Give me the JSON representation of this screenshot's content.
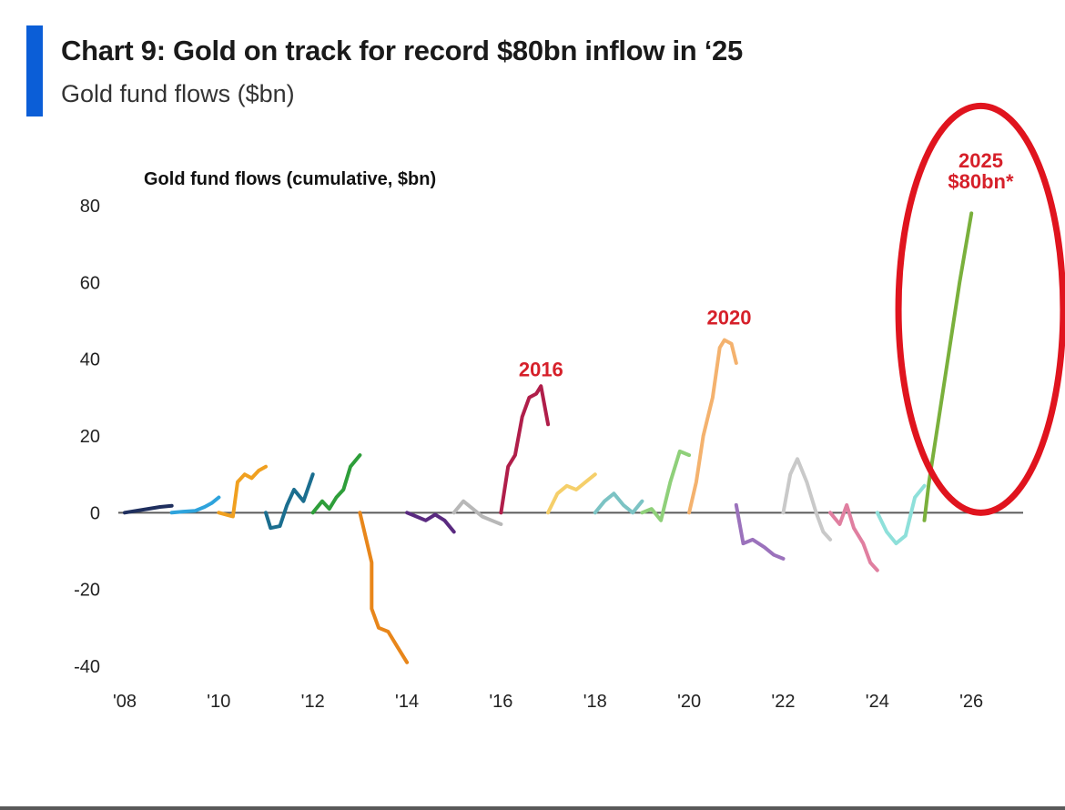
{
  "header": {
    "title": "Chart 9: Gold on track for record $80bn inflow in ‘25",
    "subtitle": "Gold fund flows ($bn)",
    "accent_color": "#0b5ed7"
  },
  "chart_data": {
    "type": "line",
    "title": "Gold fund flows (cumulative, $bn)",
    "xlabel": "",
    "ylabel": "",
    "xlim": [
      2008,
      2027.1
    ],
    "ylim": [
      -40,
      80
    ],
    "x_ticks": [
      {
        "value": 2008,
        "label": "'08"
      },
      {
        "value": 2010,
        "label": "'10"
      },
      {
        "value": 2012,
        "label": "'12"
      },
      {
        "value": 2014,
        "label": "'14"
      },
      {
        "value": 2016,
        "label": "'16"
      },
      {
        "value": 2018,
        "label": "'18"
      },
      {
        "value": 2020,
        "label": "'20"
      },
      {
        "value": 2022,
        "label": "'22"
      },
      {
        "value": 2024,
        "label": "'24"
      },
      {
        "value": 2026,
        "label": "'26"
      }
    ],
    "y_ticks": [
      {
        "value": 80,
        "label": "80"
      },
      {
        "value": 60,
        "label": "60"
      },
      {
        "value": 40,
        "label": "40"
      },
      {
        "value": 20,
        "label": "20"
      },
      {
        "value": 0,
        "label": "0"
      },
      {
        "value": -20,
        "label": "-20"
      },
      {
        "value": -40,
        "label": "-40"
      }
    ],
    "grid": false,
    "legend": "none",
    "series": [
      {
        "year": 2008,
        "color": "#1f2f5e",
        "x": [
          2008.0,
          2008.25,
          2008.5,
          2008.75,
          2009.0
        ],
        "y": [
          0,
          0.5,
          1,
          1.5,
          1.8
        ]
      },
      {
        "year": 2009,
        "color": "#2ea3dc",
        "x": [
          2009.0,
          2009.25,
          2009.5,
          2009.7,
          2009.85,
          2010.0
        ],
        "y": [
          0,
          0.3,
          0.5,
          1.5,
          2.5,
          4
        ]
      },
      {
        "year": 2010,
        "color": "#f0a020",
        "x": [
          2010.0,
          2010.3,
          2010.4,
          2010.55,
          2010.7,
          2010.85,
          2011.0
        ],
        "y": [
          0,
          -1,
          8,
          10,
          9,
          11,
          12
        ]
      },
      {
        "year": 2011,
        "color": "#1b6e8f",
        "x": [
          2011.0,
          2011.1,
          2011.3,
          2011.45,
          2011.6,
          2011.8,
          2012.0
        ],
        "y": [
          0,
          -4,
          -3.5,
          2,
          6,
          3,
          10
        ]
      },
      {
        "year": 2012,
        "color": "#2e9e3a",
        "x": [
          2012.0,
          2012.2,
          2012.35,
          2012.5,
          2012.65,
          2012.8,
          2013.0
        ],
        "y": [
          0,
          3,
          1,
          4,
          6,
          12,
          15
        ]
      },
      {
        "year": 2013,
        "color": "#e8861a",
        "x": [
          2013.0,
          2013.25,
          2013.25,
          2013.4,
          2013.6,
          2013.8,
          2014.0
        ],
        "y": [
          0,
          -13,
          -25,
          -30,
          -31,
          -35,
          -39
        ]
      },
      {
        "year": 2014,
        "color": "#5a2a80",
        "x": [
          2014.0,
          2014.2,
          2014.4,
          2014.6,
          2014.8,
          2015.0
        ],
        "y": [
          0,
          -1,
          -2,
          -0.5,
          -2,
          -5
        ]
      },
      {
        "year": 2015,
        "color": "#b8b8b8",
        "x": [
          2015.0,
          2015.2,
          2015.4,
          2015.6,
          2015.8,
          2016.0
        ],
        "y": [
          0,
          3,
          1,
          -1,
          -2,
          -3
        ]
      },
      {
        "year": 2016,
        "color": "#b01e4a",
        "x": [
          2016.0,
          2016.15,
          2016.3,
          2016.45,
          2016.6,
          2016.75,
          2016.85,
          2017.0
        ],
        "y": [
          0,
          12,
          15,
          25,
          30,
          31,
          33,
          23
        ]
      },
      {
        "year": 2017,
        "color": "#f5cf6a",
        "x": [
          2017.0,
          2017.2,
          2017.4,
          2017.6,
          2017.8,
          2018.0
        ],
        "y": [
          0,
          5,
          7,
          6,
          8,
          10
        ]
      },
      {
        "year": 2018,
        "color": "#7cc3c4",
        "x": [
          2018.0,
          2018.2,
          2018.4,
          2018.6,
          2018.8,
          2019.0
        ],
        "y": [
          0,
          3,
          5,
          2,
          0,
          3
        ]
      },
      {
        "year": 2019,
        "color": "#8fd07a",
        "x": [
          2019.0,
          2019.2,
          2019.4,
          2019.6,
          2019.8,
          2020.0
        ],
        "y": [
          0,
          1,
          -2,
          8,
          16,
          15
        ]
      },
      {
        "year": 2020,
        "color": "#f4b26e",
        "x": [
          2020.0,
          2020.15,
          2020.3,
          2020.5,
          2020.65,
          2020.75,
          2020.9,
          2021.0
        ],
        "y": [
          0,
          8,
          20,
          30,
          43,
          45,
          44,
          39
        ]
      },
      {
        "year": 2021,
        "color": "#9b72bc",
        "x": [
          2021.0,
          2021.15,
          2021.35,
          2021.6,
          2021.8,
          2022.0
        ],
        "y": [
          2,
          -8,
          -7,
          -9,
          -11,
          -12
        ]
      },
      {
        "year": 2022,
        "color": "#c9c9c9",
        "x": [
          2022.0,
          2022.15,
          2022.3,
          2022.5,
          2022.7,
          2022.85,
          2023.0
        ],
        "y": [
          0,
          10,
          14,
          8,
          0,
          -5,
          -7
        ]
      },
      {
        "year": 2023,
        "color": "#e07fa0",
        "x": [
          2023.0,
          2023.2,
          2023.35,
          2023.5,
          2023.7,
          2023.85,
          2024.0
        ],
        "y": [
          0,
          -3,
          2,
          -4,
          -8,
          -13,
          -15
        ]
      },
      {
        "year": 2024,
        "color": "#8ee0da",
        "x": [
          2024.0,
          2024.2,
          2024.4,
          2024.6,
          2024.8,
          2025.0
        ],
        "y": [
          0,
          -5,
          -8,
          -6,
          4,
          7
        ]
      },
      {
        "year": 2025,
        "color": "#7ab03c",
        "x": [
          2025.0,
          2025.1,
          2025.25,
          2025.5,
          2025.75,
          2026.0
        ],
        "y": [
          -2,
          8,
          20,
          40,
          60,
          78
        ]
      }
    ],
    "annotations": [
      {
        "text": "2016",
        "x": 2016.85,
        "y": 35.5,
        "color": "#d6202a"
      },
      {
        "text": "2020",
        "x": 2020.85,
        "y": 49,
        "color": "#d6202a"
      },
      {
        "text": "2025",
        "x": 2026.2,
        "y": 90,
        "color": "#d6202a"
      },
      {
        "text": "$80bn*",
        "x": 2026.2,
        "y": 84.5,
        "color": "#d6202a"
      }
    ],
    "highlight": {
      "shape": "ellipse",
      "color": "#e0141e",
      "center_x": 2026.2,
      "center_y": 53,
      "rx_years": 1.75,
      "ry_value": 53
    }
  }
}
